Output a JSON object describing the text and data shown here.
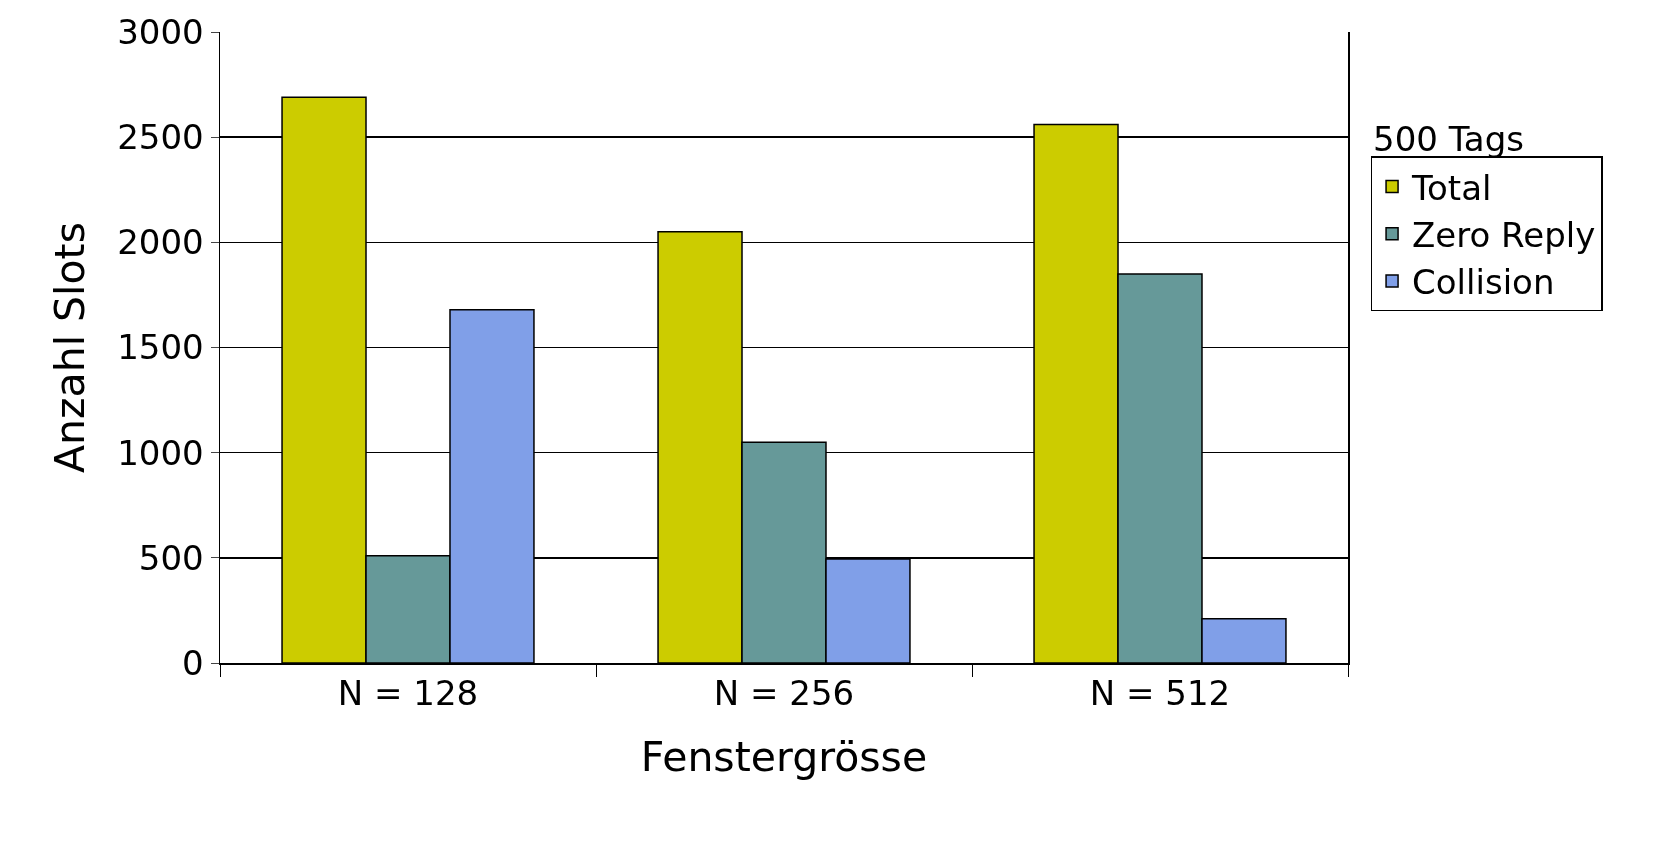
{
  "chart_data": {
    "type": "bar",
    "xlabel": "Fenstergrösse",
    "ylabel": "Anzahl Slots",
    "categories": [
      "N = 128",
      "N = 256",
      "N = 512"
    ],
    "series": [
      {
        "name": "Total",
        "color": "#cccc00",
        "values": [
          2690,
          2050,
          2560
        ]
      },
      {
        "name": "Zero Reply",
        "color": "#669999",
        "values": [
          510,
          1050,
          1850
        ]
      },
      {
        "name": "Collision",
        "color": "#809fe8",
        "values": [
          1680,
          495,
          210
        ]
      }
    ],
    "ylim": [
      0,
      3000
    ],
    "yticks": [
      0,
      500,
      1000,
      1500,
      2000,
      2500,
      3000
    ],
    "grid": "y",
    "legend": "right",
    "annotations": [
      "500 Tags"
    ]
  }
}
